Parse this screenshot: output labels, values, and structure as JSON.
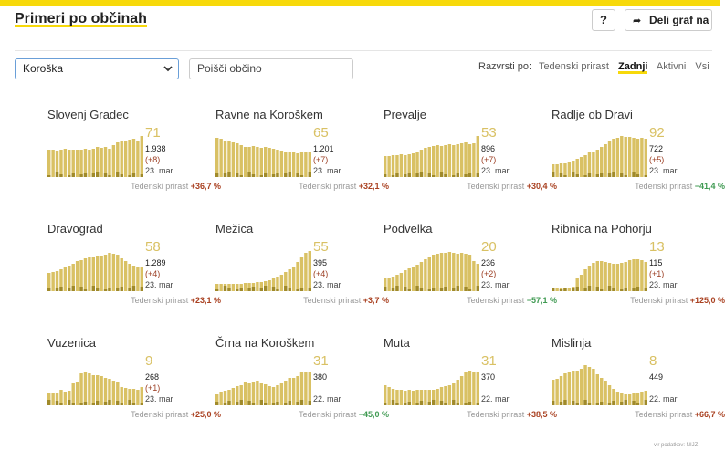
{
  "header": {
    "title": "Primeri po občinah",
    "help_label": "?",
    "share_label": "Deli graf na"
  },
  "controls": {
    "region_value": "Koroška",
    "search_placeholder": "Poišči občino",
    "sort_label": "Razvrsti po:",
    "sort_options": [
      "Tedenski prirast",
      "Zadnji",
      "Aktivni",
      "Vsi"
    ],
    "sort_active": "Zadnji"
  },
  "colors": {
    "accent": "#f7d90a",
    "bar": "#d9c164",
    "bar_dark": "#a08a2a",
    "increase": "#a94020",
    "decrease": "#3f9a52"
  },
  "icons": {
    "share": "share-arrow-icon",
    "dropdown": "chevron-down-icon"
  },
  "weekly_label": "Tedenski prirast",
  "cards": [
    {
      "name": "Slovenj Gradec",
      "active": "71",
      "total": "1.938",
      "delta": "(+8)",
      "date": "23. mar",
      "weekly": "+36,7 %",
      "trend": "up",
      "bars": [
        30,
        30,
        29,
        30,
        31,
        30,
        30,
        30,
        30,
        31,
        30,
        31,
        33,
        32,
        33,
        31,
        35,
        38,
        40,
        40,
        41,
        42,
        40,
        45
      ]
    },
    {
      "name": "Ravne na Koroškem",
      "active": "65",
      "total": "1.201",
      "delta": "(+7)",
      "date": "23. mar",
      "weekly": "+32,1 %",
      "trend": "up",
      "bars": [
        43,
        42,
        40,
        40,
        38,
        37,
        35,
        33,
        33,
        34,
        33,
        32,
        33,
        32,
        31,
        30,
        29,
        28,
        27,
        27,
        26,
        27,
        27,
        28
      ]
    },
    {
      "name": "Prevalje",
      "active": "53",
      "total": "896",
      "delta": "(+7)",
      "date": "23. mar",
      "weekly": "+30,4 %",
      "trend": "up",
      "bars": [
        23,
        23,
        24,
        24,
        25,
        24,
        25,
        26,
        28,
        30,
        32,
        33,
        34,
        35,
        34,
        35,
        36,
        35,
        36,
        37,
        38,
        36,
        37,
        45
      ]
    },
    {
      "name": "Radlje ob Dravi",
      "active": "92",
      "total": "722",
      "delta": "(+5)",
      "date": "23. mar",
      "weekly": "−41,4 %",
      "trend": "down",
      "bars": [
        14,
        14,
        15,
        15,
        16,
        18,
        20,
        22,
        24,
        27,
        28,
        30,
        33,
        36,
        40,
        42,
        43,
        45,
        44,
        44,
        43,
        42,
        43,
        42
      ]
    },
    {
      "name": "Dravograd",
      "active": "58",
      "total": "1.289",
      "delta": "(+4)",
      "date": "23. mar",
      "weekly": "+23,1 %",
      "trend": "up",
      "bars": [
        20,
        21,
        22,
        24,
        26,
        28,
        30,
        33,
        34,
        36,
        38,
        38,
        39,
        39,
        40,
        42,
        41,
        40,
        36,
        33,
        30,
        28,
        27,
        27
      ]
    },
    {
      "name": "Mežica",
      "active": "55",
      "total": "395",
      "delta": "(+4)",
      "date": "23. mar",
      "weekly": "+3,7 %",
      "trend": "up",
      "bars": [
        8,
        8,
        8,
        8,
        8,
        8,
        8,
        9,
        9,
        9,
        10,
        10,
        11,
        12,
        14,
        16,
        18,
        21,
        24,
        27,
        32,
        37,
        42,
        44
      ]
    },
    {
      "name": "Podvelka",
      "active": "20",
      "total": "236",
      "delta": "(+2)",
      "date": "23. mar",
      "weekly": "−57,1 %",
      "trend": "down",
      "bars": [
        14,
        15,
        16,
        18,
        20,
        23,
        25,
        27,
        29,
        32,
        35,
        38,
        40,
        41,
        42,
        42,
        43,
        42,
        41,
        42,
        41,
        40,
        33,
        30
      ]
    },
    {
      "name": "Ribnica na Pohorju",
      "active": "13",
      "total": "115",
      "delta": "(+1)",
      "date": "23. mar",
      "weekly": "+125,0 %",
      "trend": "up",
      "bars": [
        4,
        4,
        4,
        4,
        4,
        5,
        14,
        18,
        24,
        28,
        31,
        33,
        33,
        32,
        31,
        30,
        30,
        31,
        32,
        34,
        35,
        35,
        34,
        32
      ]
    },
    {
      "name": "Vuzenica",
      "active": "9",
      "total": "268",
      "delta": "(+1)",
      "date": "23. mar",
      "weekly": "+25,0 %",
      "trend": "up",
      "bars": [
        14,
        13,
        14,
        17,
        15,
        16,
        24,
        25,
        35,
        37,
        35,
        33,
        33,
        32,
        30,
        29,
        27,
        25,
        20,
        19,
        18,
        18,
        17,
        20
      ]
    },
    {
      "name": "Črna na Koroškem",
      "active": "31",
      "total": "380",
      "delta": "",
      "date": "22. mar",
      "weekly": "−45,0 %",
      "trend": "down",
      "bars": [
        12,
        15,
        16,
        17,
        19,
        21,
        22,
        25,
        24,
        26,
        27,
        24,
        23,
        21,
        20,
        22,
        24,
        27,
        30,
        30,
        32,
        36,
        36,
        37
      ]
    },
    {
      "name": "Muta",
      "active": "31",
      "total": "370",
      "delta": "",
      "date": "22. mar",
      "weekly": "+38,5 %",
      "trend": "up",
      "bars": [
        22,
        20,
        18,
        17,
        17,
        16,
        17,
        16,
        17,
        17,
        17,
        17,
        17,
        18,
        20,
        21,
        22,
        24,
        28,
        32,
        36,
        38,
        37,
        36
      ]
    },
    {
      "name": "Mislinja",
      "active": "8",
      "total": "449",
      "delta": "",
      "date": "22. mar",
      "weekly": "+66,7 %",
      "trend": "up",
      "bars": [
        28,
        29,
        32,
        35,
        37,
        38,
        38,
        40,
        44,
        42,
        40,
        34,
        30,
        27,
        22,
        18,
        15,
        13,
        12,
        12,
        13,
        14,
        15,
        16
      ]
    }
  ],
  "source": "vir podatkov: NIJZ"
}
